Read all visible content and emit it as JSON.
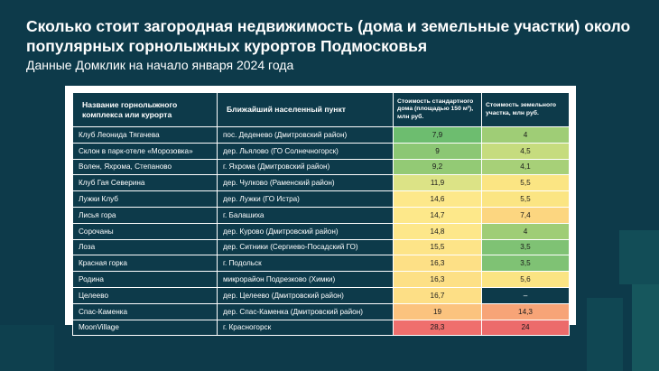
{
  "title": "Сколько стоит загородная недвижимость (дома и земельные участки) около популярных горнолыжных курортов Подмосковья",
  "subtitle": "Данные Домклик на начало января 2024 года",
  "table": {
    "headers": [
      "Название горнолыжного комплекса или курорта",
      "Ближайший населенный пункт",
      "Стоимость стандартного дома (площадью 150 м²), млн руб.",
      "Стоимость земельного участка, млн руб."
    ],
    "rows": [
      {
        "name": "Клуб Леонида Тягачева",
        "place": "пос. Деденево (Дмитровский район)",
        "house": "7,9",
        "land": "4",
        "house_color": "#6dbd6f",
        "land_color": "#9fcd76"
      },
      {
        "name": "Склон в парк-отеле «Морозовка»",
        "place": "дер. Льялово (ГО Солнечногорск)",
        "house": "9",
        "land": "4,5",
        "house_color": "#8cc774",
        "land_color": "#c6dc7e"
      },
      {
        "name": "Волен, Яхрома, Степаново",
        "place": "г. Яхрома (Дмитровский район)",
        "house": "9,2",
        "land": "4,1",
        "house_color": "#93ca75",
        "land_color": "#a7d078"
      },
      {
        "name": "Клуб Гая Северина",
        "place": "дер. Чулково (Раменский район)",
        "house": "11,9",
        "land": "5,5",
        "house_color": "#dce386",
        "land_color": "#fbe583"
      },
      {
        "name": "Лужки Клуб",
        "place": "дер. Лужки (ГО Истра)",
        "house": "14,6",
        "land": "5,5",
        "house_color": "#fde88a",
        "land_color": "#fbe583"
      },
      {
        "name": "Лисья гора",
        "place": "г. Балашиха",
        "house": "14,7",
        "land": "7,4",
        "house_color": "#fde88a",
        "land_color": "#fcd680"
      },
      {
        "name": "Сорочаны",
        "place": "дер. Курово (Дмитровский район)",
        "house": "14,8",
        "land": "4",
        "house_color": "#fde78a",
        "land_color": "#9fcd76"
      },
      {
        "name": "Лоза",
        "place": "дер. Ситники (Сергиево-Посадский ГО)",
        "house": "15,5",
        "land": "3,5",
        "house_color": "#fde488",
        "land_color": "#7fc274"
      },
      {
        "name": "Красная горка",
        "place": "г. Подольск",
        "house": "16,3",
        "land": "3,5",
        "house_color": "#fde086",
        "land_color": "#7fc274"
      },
      {
        "name": "Родина",
        "place": "микрорайон Подрезково (Химки)",
        "house": "16,3",
        "land": "5,6",
        "house_color": "#fde086",
        "land_color": "#fbe483"
      },
      {
        "name": "Целеево",
        "place": "дер. Целеево (Дмитровский район)",
        "house": "16,7",
        "land": "–",
        "house_color": "#fddf86",
        "land_color": "#0d3a4a"
      },
      {
        "name": "Спас-Каменка",
        "place": "дер. Спас-Каменка (Дмитровский район)",
        "house": "19",
        "land": "14,3",
        "house_color": "#fbc37e",
        "land_color": "#f7a477"
      },
      {
        "name": "MoonVillage",
        "place": "г. Красногорск",
        "house": "28,3",
        "land": "24",
        "house_color": "#ef6f6d",
        "land_color": "#ec6b6b"
      }
    ]
  }
}
